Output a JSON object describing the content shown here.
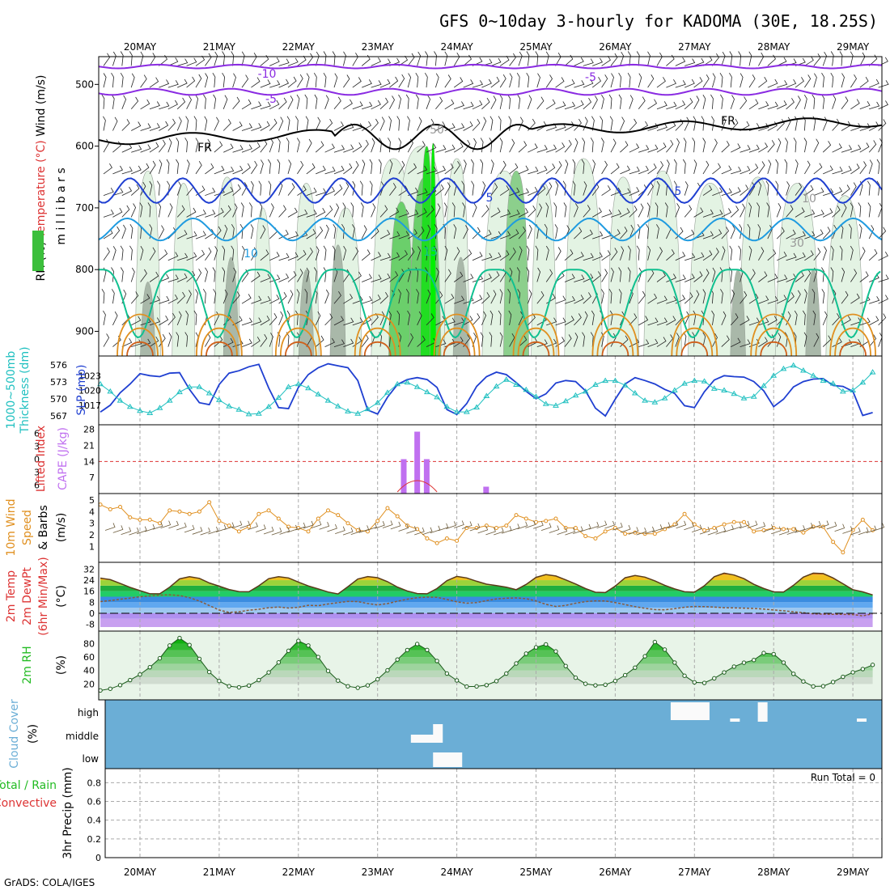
{
  "title": "GFS 0~10day 3-hourly for KADOMA (30E, 18.25S)",
  "footer": "GrADS: COLA/IGES",
  "colors": {
    "purple": "#8a2be2",
    "darkblue": "#1f3fd1",
    "medblue": "#1f9be0",
    "teal": "#10c090",
    "orange": "#e09020",
    "cyan": "#20c0c0",
    "cloudblue": "#6baed6",
    "green": "#22bb22",
    "red": "#dd3333",
    "violet": "#c070f0"
  },
  "chart_data": [
    {
      "type": "contour",
      "name": "upper",
      "x": [
        "20MAY",
        "21MAY",
        "22MAY",
        "23MAY",
        "24MAY",
        "25MAY",
        "26MAY",
        "27MAY",
        "28MAY",
        "29MAY"
      ],
      "ylabel": "m i l l i b a r s",
      "yticks": [
        500,
        600,
        700,
        800,
        900
      ],
      "left_labels": [
        {
          "text": "RH (%)",
          "color": "#000000"
        },
        {
          "text": "Temperature (°C)",
          "color": "#dd3333"
        },
        {
          "text": "Wind (m/s)",
          "color": "#000000"
        }
      ],
      "contour_labels": [
        {
          "text": "-10",
          "color": "#8a2be2"
        },
        {
          "text": "-5",
          "color": "#8a2be2"
        },
        {
          "text": "-5",
          "color": "#8a2be2"
        },
        {
          "text": "FR",
          "color": "#000000"
        },
        {
          "text": "FR",
          "color": "#000000"
        },
        {
          "text": "5",
          "color": "#1f3fd1"
        },
        {
          "text": "5",
          "color": "#1f3fd1"
        },
        {
          "text": "10",
          "color": "#1f9be0"
        },
        {
          "text": "15",
          "color": "#10c090"
        },
        {
          "text": "10",
          "color": "#999999"
        },
        {
          "text": "30",
          "color": "#999999"
        },
        {
          "text": "50",
          "color": "#999999"
        }
      ]
    },
    {
      "type": "line",
      "name": "slp_thickness",
      "ylabel_left": "Thickness (dm)",
      "ylabel_left2": "1000~500mb",
      "ylabel_right": "SLP (mb)",
      "yticks_thick": [
        567,
        570,
        573,
        576
      ],
      "yticks_slp": [
        1017,
        1020,
        1023
      ],
      "series": [
        {
          "values_slp": [
            1015.6,
            1017.0,
            1019.5,
            1021.3,
            1023.4,
            1023.0,
            1022.8,
            1023.5,
            1023.6,
            1020.2,
            1017.5,
            1017.1,
            1021.2,
            1023.5,
            1024.0,
            1024.8,
            1025.3,
            1020.5,
            1016.5,
            1016.3,
            1020.6,
            1023.2,
            1024.6,
            1025.4,
            1025.0,
            1024.6,
            1022.0,
            1016.0,
            1015.2,
            1018.6,
            1021.2,
            1022.2,
            1022.6,
            1022.2,
            1020.6,
            1016.1,
            1015.1,
            1017.3,
            1020.8,
            1022.8,
            1023.7,
            1023.2,
            1021.6,
            1019.8,
            1018.3,
            1019.3,
            1021.5,
            1022.0,
            1021.8,
            1019.9,
            1016.4,
            1014.8,
            1018.2,
            1021.3,
            1022.6,
            1022.0,
            1021.3,
            1020.2,
            1019.4,
            1016.9,
            1016.5,
            1019.7,
            1022.1,
            1023.0,
            1022.8,
            1022.7,
            1021.8,
            1019.9,
            1016.7,
            1018.2,
            1020.7,
            1021.8,
            1022.3,
            1022.4,
            1021.0,
            1020.8,
            1019.8,
            1014.9,
            1015.5,
            1020.7,
            1022.4,
            1023.0,
            1022.9,
            1021.4,
            1021.2,
            1015.2,
            1016.8,
            1022.0,
            1022.4,
            1022.6,
            1022.1,
            1022.4,
            1022.9,
            1023.0,
            1020.0,
            1016.0,
            1016.5,
            1019.6,
            1021.1,
            1022.1,
            1022.8
          ]
        },
        {
          "values_thick": [
            572.6,
            571.3,
            569.7,
            568.6,
            567.9,
            567.5,
            568.4,
            569.7,
            571.2,
            572.1,
            572.1,
            571.0,
            569.8,
            568.7,
            568.1,
            567.3,
            567.4,
            568.6,
            570.2,
            572.1,
            572.6,
            571.9,
            570.8,
            569.7,
            568.7,
            567.8,
            567.4,
            568.2,
            569.3,
            571.1,
            572.6,
            572.9,
            572.1,
            571.2,
            570.3,
            568.6,
            567.7,
            567.7,
            568.5,
            570.5,
            572.2,
            573.4,
            572.5,
            571.6,
            570.4,
            569.1,
            568.8,
            569.6,
            570.6,
            571.3,
            572.5,
            573.2,
            573.2,
            572.4,
            571.0,
            569.7,
            569.4,
            570.1,
            571.5,
            572.7,
            573.2,
            573.1,
            571.8,
            571.5,
            570.9,
            570.1,
            570.4,
            572.3,
            574.1,
            575.3,
            575.9,
            575.0,
            574.1,
            573.2,
            572.7,
            571.3,
            571.5,
            572.9,
            574.7,
            575.7,
            576.6,
            575.8,
            575.2,
            573.0,
            571.2,
            570.6,
            571.0,
            572.7,
            574.6,
            575.5,
            575.3,
            574.9,
            574.0,
            571.8,
            570.4,
            569.3,
            569.0,
            569.6,
            570.5,
            571.0,
            570.9
          ]
        }
      ]
    },
    {
      "type": "bar",
      "name": "cape_li",
      "ylabel_left": "Lifted Index",
      "ylabel_right": "CAPE (J/kg)",
      "yticks_li": [
        -6,
        -3,
        0,
        3,
        6
      ],
      "ytick_labels_li": [
        "6",
        "3",
        "0",
        "3",
        "6"
      ],
      "yticks_cape": [
        7,
        14,
        21,
        28
      ],
      "cape_bars": [
        {
          "day": 3.33,
          "value": 15
        },
        {
          "day": 3.5,
          "value": 27
        },
        {
          "day": 3.62,
          "value": 15
        },
        {
          "day": 4.37,
          "value": 3
        }
      ]
    },
    {
      "type": "line",
      "name": "wind10m",
      "ylabel": "10m Wind Speed & Barbs (m/s)",
      "yticks": [
        1,
        2,
        3,
        4,
        5
      ],
      "series": [
        {
          "values": [
            4.6,
            4.2,
            4.4,
            3.5,
            3.3,
            3.3,
            3.0,
            4.1,
            4.0,
            3.8,
            4.0,
            4.8,
            3.2,
            2.8,
            2.3,
            2.7,
            3.8,
            4.1,
            3.4,
            2.7,
            2.6,
            2.3,
            3.4,
            4.1,
            3.7,
            3.0,
            2.4,
            2.3,
            3.2,
            4.3,
            3.6,
            2.8,
            2.5,
            1.7,
            1.3,
            1.7,
            1.5,
            2.6,
            2.6,
            2.8,
            2.6,
            2.8,
            3.7,
            3.4,
            3.1,
            3.2,
            3.4,
            2.6,
            2.6,
            1.9,
            1.7,
            2.3,
            2.6,
            2.1,
            2.2,
            2.1,
            2.1,
            2.5,
            2.9,
            3.8,
            2.9,
            2.4,
            2.6,
            2.9,
            3.1,
            3.1,
            2.3,
            2.4,
            2.6,
            2.5,
            2.5,
            2.2,
            2.7,
            2.7,
            1.4,
            0.5,
            2.4,
            3.3,
            2.4,
            2.4,
            2.4,
            2.6,
            2.6,
            1.5,
            1.2,
            1.8,
            2.4,
            2.4,
            2.7,
            3.3,
            3.3,
            3.2,
            3.5,
            3.1,
            3.8,
            4.6,
            2.3,
            2.4,
            2.5,
            2.4,
            2.3
          ]
        }
      ]
    },
    {
      "type": "area",
      "name": "temp2m",
      "ylabel": "2m Temp 2m DewPt (6hr Min/Max) (°C)",
      "yticks": [
        -8,
        0,
        8,
        16,
        24,
        32
      ],
      "series": [
        {
          "name_hidden": "temp",
          "values": [
            25.5,
            24.4,
            21.6,
            18.8,
            16.4,
            14.1,
            14.1,
            18.9,
            24.9,
            26.5,
            25.3,
            22.0,
            19.6,
            17.2,
            15.7,
            15.6,
            19.9,
            25.1,
            26.5,
            25.6,
            22.6,
            19.8,
            17.7,
            15.4,
            14.0,
            19.3,
            24.8,
            26.6,
            25.8,
            22.9,
            19.0,
            16.1,
            14.3,
            14.1,
            17.9,
            23.6,
            26.7,
            25.6,
            23.2,
            21.1,
            20.1,
            18.9,
            17.1,
            20.9,
            26.0,
            28.1,
            27.0,
            24.2,
            21.2,
            17.9,
            15.2,
            15.0,
            19.7,
            25.7,
            27.4,
            26.2,
            23.5,
            20.3,
            17.7,
            15.6,
            15.3,
            19.9,
            26.5,
            29.1,
            27.7,
            25.1,
            21.0,
            18.0,
            15.5,
            15.4,
            20.3,
            26.2,
            29.1,
            28.8,
            25.6,
            21.4,
            17.1,
            15.5,
            13.3,
            20.1,
            27.8,
            30.3,
            30.0,
            26.7,
            21.9,
            17.6,
            16.2,
            14.7,
            19.5,
            27.4,
            30.5,
            29.6,
            27.4,
            20.2,
            16.2,
            14.1,
            13.4,
            11.6,
            15.3,
            12.3,
            14.3
          ]
        },
        {
          "name_hidden": "dewpt",
          "values": [
            8.5,
            9.2,
            10.1,
            11.0,
            12.0,
            12.5,
            13.2,
            13.4,
            12.9,
            11.3,
            8.9,
            5.6,
            2.3,
            0.6,
            1.1,
            2.2,
            2.9,
            4.0,
            4.5,
            3.8,
            4.3,
            5.8,
            5.5,
            6.7,
            7.7,
            8.6,
            8.5,
            7.1,
            6.0,
            7.0,
            8.7,
            10.2,
            11.3,
            11.7,
            11.6,
            10.0,
            8.3,
            7.3,
            7.8,
            9.1,
            10.4,
            10.9,
            11.1,
            10.6,
            8.9,
            6.5,
            4.9,
            5.7,
            7.3,
            8.4,
            9.0,
            8.9,
            7.8,
            6.3,
            4.8,
            3.6,
            2.7,
            2.5,
            3.3,
            4.4,
            4.9,
            4.8,
            4.5,
            4.0,
            3.9,
            3.7,
            3.5,
            3.0,
            2.4,
            1.8,
            1.1,
            0.4,
            -0.4,
            -0.7,
            -0.8,
            -0.8,
            -0.9,
            -1.9,
            -0.3,
            1.9,
            2.9,
            2.4,
            1.2,
            0.2,
            -0.8,
            -1.6,
            -2.2,
            -2.3,
            -1.3,
            -0.1,
            0.8,
            0.6,
            -1.6,
            -4.5,
            -3.1,
            -1.3,
            1.3,
            3.8,
            5.1,
            6.2,
            6.7
          ]
        }
      ]
    },
    {
      "type": "area",
      "name": "rh2m",
      "ylabel": "2m RH (%)",
      "yticks": [
        20,
        40,
        60,
        80
      ],
      "series": [
        {
          "values": [
            10.4,
            12.9,
            18.3,
            25.8,
            34.1,
            44.9,
            58.2,
            77.1,
            88.3,
            77.9,
            57.4,
            37.8,
            24.4,
            16.7,
            15.0,
            17.7,
            25.8,
            37.2,
            52.0,
            69.3,
            84.1,
            77.2,
            60.1,
            39.4,
            25.0,
            16.6,
            14.3,
            17.9,
            26.9,
            40.3,
            56.3,
            70.4,
            79.4,
            70.6,
            54.2,
            35.5,
            25.3,
            16.1,
            16.4,
            18.3,
            24.2,
            35.5,
            50.5,
            65.1,
            74.4,
            78.9,
            68.4,
            46.7,
            29.3,
            20.3,
            18.0,
            18.8,
            24.5,
            33.1,
            44.3,
            61.2,
            82.4,
            71.1,
            51.8,
            32.2,
            22.5,
            21.6,
            28.4,
            37.2,
            45.8,
            51.6,
            55.6,
            66.0,
            64.4,
            51.8,
            35.1,
            23.8,
            16.4,
            16.7,
            22.9,
            30.6,
            37.3,
            42.2,
            48.4,
            56.7,
            59.7,
            56.9,
            43.4,
            30.5,
            23.4,
            18.9,
            16.4,
            16.8,
            25.3,
            33.2,
            38.8,
            39.6,
            34.3,
            23.9,
            14.1,
            7.4,
            8.5,
            14.4,
            26.8,
            45.0,
            58.6
          ]
        }
      ]
    },
    {
      "type": "heatmap",
      "name": "cloud",
      "ylabel": "Cloud Cover (%)",
      "rows": [
        "high",
        "middle",
        "low"
      ]
    },
    {
      "type": "line",
      "name": "precip",
      "ylabel": "3hr Precip (mm)",
      "ylabel2": "Total / Rain",
      "ylabel3": "Convective",
      "yticks": [
        0,
        0.2,
        0.4,
        0.6,
        0.8
      ],
      "run_total": "Run Total = 0"
    }
  ]
}
